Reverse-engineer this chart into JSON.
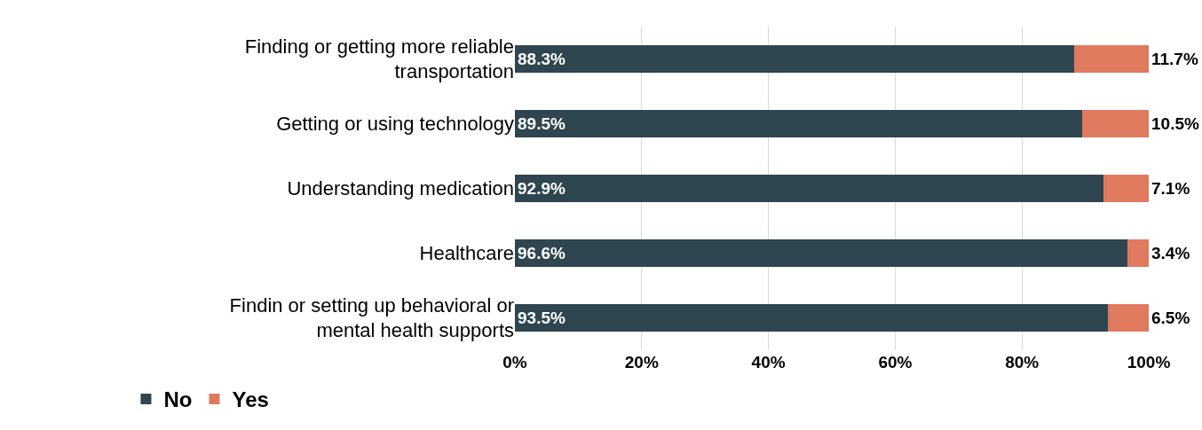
{
  "chart_data": {
    "type": "bar",
    "orientation": "horizontal",
    "stacked": true,
    "categories": [
      "Finding or getting more reliable transportation",
      "Getting or using technology",
      "Understanding medication",
      "Healthcare",
      "Findin or setting up behavioral or mental health supports"
    ],
    "series": [
      {
        "name": "No",
        "color": "#2f4550",
        "values": [
          88.3,
          89.5,
          92.9,
          96.6,
          93.5
        ],
        "value_labels": [
          "88.3%",
          "89.5%",
          "92.9%",
          "96.6%",
          "93.5%"
        ]
      },
      {
        "name": "Yes",
        "color": "#e07a5f",
        "values": [
          11.7,
          10.5,
          7.1,
          3.4,
          6.5
        ],
        "value_labels": [
          "11.7%",
          "10.5%",
          "7.1%",
          "3.4%",
          "6.5%"
        ]
      }
    ],
    "xlim": [
      0,
      100
    ],
    "xticks": [
      {
        "value": 0,
        "label": "0%"
      },
      {
        "value": 20,
        "label": "20%"
      },
      {
        "value": 40,
        "label": "40%"
      },
      {
        "value": 60,
        "label": "60%"
      },
      {
        "value": 80,
        "label": "80%"
      },
      {
        "value": 100,
        "label": "100%"
      }
    ],
    "grid": "x",
    "legend": "bottom left"
  }
}
